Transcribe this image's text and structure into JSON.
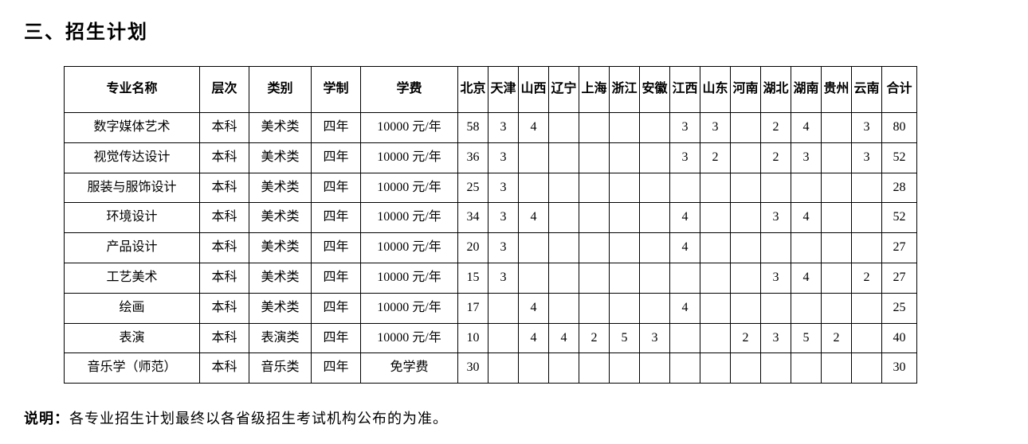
{
  "title": "三、招生计划",
  "note": {
    "label": "说明：",
    "text": "各专业招生计划最终以各省级招生考试机构公布的为准。"
  },
  "table": {
    "headers": {
      "major": "专业名称",
      "level": "层次",
      "category": "类别",
      "duration": "学制",
      "fee": "学费",
      "total": "合计"
    },
    "provinces": [
      "北京",
      "天津",
      "山西",
      "辽宁",
      "上海",
      "浙江",
      "安徽",
      "江西",
      "山东",
      "河南",
      "湖北",
      "湖南",
      "贵州",
      "云南"
    ],
    "rows": [
      {
        "major": "数字媒体艺术",
        "level": "本科",
        "category": "美术类",
        "duration": "四年",
        "fee": "10000 元/年",
        "cells": [
          "58",
          "3",
          "4",
          "",
          "",
          "",
          "",
          "3",
          "3",
          "",
          "2",
          "4",
          "",
          "3"
        ],
        "total": "80"
      },
      {
        "major": "视觉传达设计",
        "level": "本科",
        "category": "美术类",
        "duration": "四年",
        "fee": "10000 元/年",
        "cells": [
          "36",
          "3",
          "",
          "",
          "",
          "",
          "",
          "3",
          "2",
          "",
          "2",
          "3",
          "",
          "3"
        ],
        "total": "52"
      },
      {
        "major": "服装与服饰设计",
        "level": "本科",
        "category": "美术类",
        "duration": "四年",
        "fee": "10000 元/年",
        "cells": [
          "25",
          "3",
          "",
          "",
          "",
          "",
          "",
          "",
          "",
          "",
          "",
          "",
          "",
          ""
        ],
        "total": "28"
      },
      {
        "major": "环境设计",
        "level": "本科",
        "category": "美术类",
        "duration": "四年",
        "fee": "10000 元/年",
        "cells": [
          "34",
          "3",
          "4",
          "",
          "",
          "",
          "",
          "4",
          "",
          "",
          "3",
          "4",
          "",
          ""
        ],
        "total": "52"
      },
      {
        "major": "产品设计",
        "level": "本科",
        "category": "美术类",
        "duration": "四年",
        "fee": "10000 元/年",
        "cells": [
          "20",
          "3",
          "",
          "",
          "",
          "",
          "",
          "4",
          "",
          "",
          "",
          "",
          "",
          ""
        ],
        "total": "27"
      },
      {
        "major": "工艺美术",
        "level": "本科",
        "category": "美术类",
        "duration": "四年",
        "fee": "10000 元/年",
        "cells": [
          "15",
          "3",
          "",
          "",
          "",
          "",
          "",
          "",
          "",
          "",
          "3",
          "4",
          "",
          "2"
        ],
        "total": "27"
      },
      {
        "major": "绘画",
        "level": "本科",
        "category": "美术类",
        "duration": "四年",
        "fee": "10000 元/年",
        "cells": [
          "17",
          "",
          "4",
          "",
          "",
          "",
          "",
          "4",
          "",
          "",
          "",
          "",
          "",
          ""
        ],
        "total": "25"
      },
      {
        "major": "表演",
        "level": "本科",
        "category": "表演类",
        "duration": "四年",
        "fee": "10000 元/年",
        "cells": [
          "10",
          "",
          "4",
          "4",
          "2",
          "5",
          "3",
          "",
          "",
          "2",
          "3",
          "5",
          "2",
          ""
        ],
        "total": "40"
      },
      {
        "major": "音乐学（师范）",
        "level": "本科",
        "category": "音乐类",
        "duration": "四年",
        "fee": "免学费",
        "cells": [
          "30",
          "",
          "",
          "",
          "",
          "",
          "",
          "",
          "",
          "",
          "",
          "",
          "",
          ""
        ],
        "total": "30"
      }
    ]
  }
}
